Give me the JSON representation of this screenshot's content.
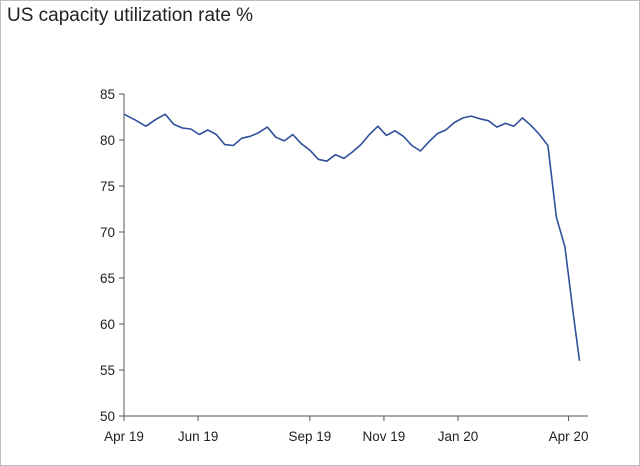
{
  "chart_data": {
    "type": "line",
    "title": "US capacity utilization rate %",
    "xlabel": "",
    "ylabel": "",
    "ylim": [
      50,
      85
    ],
    "yticks": [
      85,
      80,
      75,
      70,
      65,
      60,
      55,
      50
    ],
    "xlim": [
      "2019-04-01",
      "2020-04-17"
    ],
    "xticks": [
      {
        "label": "Apr 19",
        "date": "2019-04-01"
      },
      {
        "label": "Jun 19",
        "date": "2019-06-01"
      },
      {
        "label": "Sep 19",
        "date": "2019-09-01"
      },
      {
        "label": "Nov 19",
        "date": "2019-11-01"
      },
      {
        "label": "Jan 20",
        "date": "2020-01-01"
      },
      {
        "label": "Apr 20",
        "date": "2020-04-01"
      }
    ],
    "grid": false,
    "line_color": "#2f4f9a",
    "series": [
      {
        "points": [
          [
            "2019-04-01",
            82.8
          ],
          [
            "2019-04-10",
            82.2
          ],
          [
            "2019-04-19",
            81.5
          ],
          [
            "2019-04-28",
            82.3
          ],
          [
            "2019-05-05",
            82.8
          ],
          [
            "2019-05-12",
            81.7
          ],
          [
            "2019-05-19",
            81.3
          ],
          [
            "2019-05-26",
            81.2
          ],
          [
            "2019-06-02",
            80.6
          ],
          [
            "2019-06-09",
            81.1
          ],
          [
            "2019-06-16",
            80.6
          ],
          [
            "2019-06-23",
            79.5
          ],
          [
            "2019-06-30",
            79.4
          ],
          [
            "2019-07-07",
            80.2
          ],
          [
            "2019-07-14",
            80.4
          ],
          [
            "2019-07-21",
            80.8
          ],
          [
            "2019-07-28",
            81.4
          ],
          [
            "2019-08-04",
            80.3
          ],
          [
            "2019-08-11",
            79.9
          ],
          [
            "2019-08-18",
            80.6
          ],
          [
            "2019-08-25",
            79.6
          ],
          [
            "2019-09-01",
            78.9
          ],
          [
            "2019-09-08",
            77.9
          ],
          [
            "2019-09-15",
            77.7
          ],
          [
            "2019-09-22",
            78.4
          ],
          [
            "2019-09-29",
            78.0
          ],
          [
            "2019-10-06",
            78.7
          ],
          [
            "2019-10-13",
            79.5
          ],
          [
            "2019-10-20",
            80.6
          ],
          [
            "2019-10-27",
            81.5
          ],
          [
            "2019-11-03",
            80.5
          ],
          [
            "2019-11-10",
            81.0
          ],
          [
            "2019-11-17",
            80.4
          ],
          [
            "2019-11-24",
            79.4
          ],
          [
            "2019-12-01",
            78.8
          ],
          [
            "2019-12-08",
            79.8
          ],
          [
            "2019-12-15",
            80.7
          ],
          [
            "2019-12-22",
            81.1
          ],
          [
            "2019-12-29",
            81.9
          ],
          [
            "2020-01-05",
            82.4
          ],
          [
            "2020-01-12",
            82.6
          ],
          [
            "2020-01-19",
            82.3
          ],
          [
            "2020-01-26",
            82.1
          ],
          [
            "2020-02-02",
            81.4
          ],
          [
            "2020-02-09",
            81.8
          ],
          [
            "2020-02-16",
            81.5
          ],
          [
            "2020-02-23",
            82.4
          ],
          [
            "2020-03-01",
            81.6
          ],
          [
            "2020-03-08",
            80.6
          ],
          [
            "2020-03-15",
            79.4
          ],
          [
            "2020-03-22",
            71.6
          ],
          [
            "2020-03-29",
            68.4
          ],
          [
            "2020-04-05",
            61.0
          ],
          [
            "2020-04-10",
            56.0
          ]
        ]
      }
    ]
  }
}
